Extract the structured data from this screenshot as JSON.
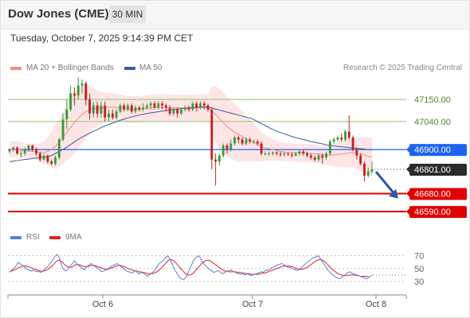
{
  "header": {
    "title": "Dow Jones (CME)",
    "interval": "30 MIN"
  },
  "datetime": "Tuesday, October 7, 2025 9:14:39 PM CET",
  "legend": {
    "ma20": "MA 20 + Bollinger Bands",
    "ma50": "MA 50",
    "rsi": "RSI",
    "ma9": "9MA"
  },
  "attribution": "Research © 2025 Trading Central",
  "colors": {
    "bollinger_fill": "#fde0e0",
    "ma20": "#f08a8a",
    "ma50": "#3a5aa0",
    "up": "#3a9a3a",
    "down": "#c42020",
    "pivot": "#1e63f0",
    "support": "#e00000",
    "resistance": "#90c070",
    "rsi": "#5a7fd0",
    "rsi_ma": "#e02020",
    "arrow": "#2a5aa8"
  },
  "chart_data": [
    {
      "type": "candlestick",
      "title": "Dow Jones (CME)",
      "x_labels": [
        "Oct 6",
        "Oct 7",
        "Oct 8"
      ],
      "ylim": [
        46515,
        47250
      ],
      "price_levels": [
        {
          "label": "47150.00",
          "value": 47150,
          "kind": "resistance"
        },
        {
          "label": "47040.00",
          "value": 47040,
          "kind": "resistance"
        },
        {
          "label": "46900.00",
          "value": 46900,
          "kind": "pivot"
        },
        {
          "label": "46801.00",
          "value": 46801,
          "kind": "last"
        },
        {
          "label": "46680.00",
          "value": 46680,
          "kind": "support"
        },
        {
          "label": "46590.00",
          "value": 46590,
          "kind": "support"
        }
      ],
      "candles": [
        [
          46890,
          46900,
          46880,
          46905
        ],
        [
          46900,
          46910,
          46890,
          46915
        ],
        [
          46910,
          46880,
          46875,
          46915
        ],
        [
          46880,
          46880,
          46860,
          46895
        ],
        [
          46880,
          46900,
          46870,
          46910
        ],
        [
          46900,
          46920,
          46890,
          46925
        ],
        [
          46920,
          46900,
          46890,
          46925
        ],
        [
          46900,
          46880,
          46870,
          46910
        ],
        [
          46880,
          46850,
          46840,
          46890
        ],
        [
          46850,
          46870,
          46845,
          46880
        ],
        [
          46870,
          46840,
          46830,
          46875
        ],
        [
          46840,
          46830,
          46820,
          46850
        ],
        [
          46830,
          46860,
          46820,
          46870
        ],
        [
          46860,
          46950,
          46850,
          46960
        ],
        [
          46950,
          47050,
          46940,
          47080
        ],
        [
          47050,
          47100,
          47000,
          47150
        ],
        [
          47100,
          47180,
          47090,
          47220
        ],
        [
          47180,
          47170,
          47120,
          47210
        ],
        [
          47170,
          47220,
          47150,
          47260
        ],
        [
          47220,
          47230,
          47180,
          47250
        ],
        [
          47230,
          47150,
          47120,
          47240
        ],
        [
          47150,
          47080,
          47050,
          47180
        ],
        [
          47080,
          47120,
          47060,
          47140
        ],
        [
          47120,
          47080,
          47060,
          47140
        ],
        [
          47080,
          47120,
          47060,
          47140
        ],
        [
          47120,
          47060,
          47040,
          47140
        ],
        [
          47060,
          47080,
          47040,
          47100
        ],
        [
          47080,
          47060,
          47050,
          47100
        ],
        [
          47060,
          47090,
          47050,
          47100
        ],
        [
          47090,
          47120,
          47080,
          47130
        ],
        [
          47120,
          47100,
          47090,
          47130
        ],
        [
          47100,
          47120,
          47090,
          47130
        ],
        [
          47120,
          47090,
          47080,
          47130
        ],
        [
          47090,
          47110,
          47080,
          47120
        ],
        [
          47110,
          47100,
          47090,
          47120
        ],
        [
          47100,
          47110,
          47090,
          47130
        ],
        [
          47110,
          47120,
          47100,
          47130
        ],
        [
          47120,
          47130,
          47100,
          47140
        ],
        [
          47130,
          47110,
          47100,
          47140
        ],
        [
          47110,
          47130,
          47100,
          47140
        ],
        [
          47130,
          47120,
          47100,
          47140
        ],
        [
          47120,
          47110,
          47090,
          47130
        ],
        [
          47110,
          47080,
          47070,
          47120
        ],
        [
          47080,
          47100,
          47070,
          47110
        ],
        [
          47100,
          47080,
          47060,
          47110
        ],
        [
          47080,
          47100,
          47070,
          47110
        ],
        [
          47100,
          47110,
          47090,
          47120
        ],
        [
          47110,
          47100,
          47090,
          47120
        ],
        [
          47100,
          47130,
          47090,
          47140
        ],
        [
          47130,
          47110,
          47090,
          47140
        ],
        [
          47110,
          47130,
          47100,
          47140
        ],
        [
          47130,
          47120,
          47100,
          47140
        ],
        [
          47120,
          47100,
          47090,
          47130
        ],
        [
          47100,
          46850,
          46800,
          47110
        ],
        [
          46850,
          46840,
          46720,
          46880
        ],
        [
          46840,
          46870,
          46820,
          46880
        ],
        [
          46870,
          46920,
          46860,
          46930
        ],
        [
          46920,
          46900,
          46880,
          46930
        ],
        [
          46900,
          46930,
          46890,
          46950
        ],
        [
          46930,
          46960,
          46920,
          46970
        ],
        [
          46960,
          46950,
          46930,
          46970
        ],
        [
          46950,
          46930,
          46920,
          46960
        ],
        [
          46930,
          46950,
          46920,
          46960
        ],
        [
          46950,
          46940,
          46930,
          46960
        ],
        [
          46940,
          46940,
          46930,
          46950
        ],
        [
          46940,
          46930,
          46920,
          46950
        ],
        [
          46930,
          46880,
          46870,
          46940
        ],
        [
          46880,
          46880,
          46870,
          46890
        ],
        [
          46880,
          46880,
          46870,
          46890
        ],
        [
          46880,
          46885,
          46870,
          46890
        ],
        [
          46885,
          46880,
          46870,
          46890
        ],
        [
          46880,
          46875,
          46865,
          46890
        ],
        [
          46875,
          46880,
          46865,
          46890
        ],
        [
          46880,
          46875,
          46870,
          46885
        ],
        [
          46875,
          46870,
          46860,
          46885
        ],
        [
          46870,
          46880,
          46865,
          46890
        ],
        [
          46880,
          46890,
          46870,
          46900
        ],
        [
          46890,
          46880,
          46870,
          46900
        ],
        [
          46880,
          46870,
          46860,
          46890
        ],
        [
          46870,
          46860,
          46850,
          46880
        ],
        [
          46860,
          46850,
          46840,
          46870
        ],
        [
          46850,
          46870,
          46840,
          46880
        ],
        [
          46870,
          46860,
          46830,
          46880
        ],
        [
          46860,
          46880,
          46850,
          46890
        ],
        [
          46880,
          46940,
          46870,
          46950
        ],
        [
          46940,
          46950,
          46930,
          46960
        ],
        [
          46950,
          46960,
          46940,
          46970
        ],
        [
          46960,
          46950,
          46940,
          46980
        ],
        [
          46950,
          46990,
          46940,
          47000
        ],
        [
          46990,
          46960,
          46950,
          47070
        ],
        [
          46960,
          46900,
          46890,
          46970
        ],
        [
          46900,
          46870,
          46850,
          46910
        ],
        [
          46870,
          46830,
          46820,
          46880
        ],
        [
          46830,
          46770,
          46740,
          46840
        ],
        [
          46770,
          46790,
          46760,
          46810
        ],
        [
          46790,
          46801,
          46780,
          46840
        ]
      ],
      "ma20": [
        46900,
        46900,
        46902,
        46898,
        46895,
        46893,
        46890,
        46890,
        46885,
        46885,
        46890,
        46900,
        46915,
        46935,
        46960,
        46985,
        47010,
        47035,
        47055,
        47075,
        47090,
        47100,
        47105,
        47105,
        47108,
        47110,
        47112,
        47112,
        47110,
        47108,
        47105,
        47102,
        47100,
        47100,
        47102,
        47104,
        47106,
        47108,
        47110,
        47110,
        47110,
        47110,
        47108,
        47108,
        47108,
        47108,
        47108,
        47108,
        47108,
        47108,
        47110,
        47110,
        47110,
        47095,
        47075,
        47055,
        47035,
        47015,
        47000,
        46985,
        46975,
        46965,
        46955,
        46945,
        46935,
        46925,
        46915,
        46908,
        46905,
        46900,
        46895,
        46890,
        46888,
        46886,
        46885,
        46884,
        46884,
        46883,
        46882,
        46880,
        46878,
        46876,
        46874,
        46872,
        46872,
        46874,
        46876,
        46878,
        46880,
        46884,
        46884,
        46882,
        46878,
        46874,
        46866,
        46862
      ],
      "ma50": [
        46840,
        46842,
        46845,
        46848,
        46850,
        46852,
        46855,
        46858,
        46860,
        46863,
        46865,
        46870,
        46880,
        46890,
        46900,
        46912,
        46925,
        46938,
        46950,
        46962,
        46972,
        46982,
        46992,
        47000,
        47010,
        47018,
        47025,
        47032,
        47040,
        47046,
        47052,
        47058,
        47063,
        47068,
        47072,
        47076,
        47080,
        47083,
        47086,
        47089,
        47092,
        47095,
        47098,
        47100,
        47102,
        47104,
        47106,
        47108,
        47110,
        47111,
        47112,
        47113,
        47112,
        47108,
        47102,
        47097,
        47092,
        47087,
        47082,
        47077,
        47072,
        47067,
        47062,
        47057,
        47050,
        47040,
        47030,
        47020,
        47010,
        47000,
        46992,
        46985,
        46978,
        46972,
        46965,
        46960,
        46955,
        46950,
        46945,
        46940,
        46936,
        46932,
        46928,
        46924,
        46920,
        46918,
        46916,
        46914,
        46912,
        46910,
        46908,
        46906,
        46905,
        46903,
        46900,
        46898
      ],
      "bb_width": [
        40,
        40,
        40,
        38,
        36,
        36,
        38,
        40,
        45,
        55,
        70,
        90,
        110,
        120,
        130,
        140,
        150,
        152,
        150,
        145,
        140,
        120,
        100,
        90,
        80,
        75,
        70,
        70,
        70,
        68,
        66,
        66,
        66,
        66,
        66,
        66,
        66,
        66,
        66,
        66,
        66,
        66,
        66,
        66,
        66,
        66,
        66,
        66,
        66,
        66,
        66,
        66,
        66,
        120,
        140,
        150,
        150,
        148,
        145,
        140,
        135,
        125,
        115,
        105,
        95,
        85,
        75,
        65,
        60,
        55,
        50,
        48,
        45,
        45,
        45,
        45,
        45,
        45,
        45,
        45,
        45,
        45,
        45,
        48,
        52,
        58,
        62,
        66,
        70,
        72,
        74,
        80,
        86,
        90,
        95,
        95
      ]
    },
    {
      "type": "line",
      "series_names": [
        "RSI",
        "9MA"
      ],
      "y_ticks": [
        70,
        50,
        30
      ],
      "ylim": [
        20,
        82
      ],
      "rsi": [
        44,
        47,
        49,
        51,
        55,
        60,
        58,
        56,
        54,
        52,
        50,
        48,
        47,
        46,
        48,
        46,
        45,
        46,
        44,
        45,
        47,
        50,
        52,
        55,
        58,
        62,
        66,
        70,
        72,
        68,
        60,
        52,
        48,
        46,
        48,
        52,
        55,
        58,
        62,
        60,
        56,
        54,
        52,
        50,
        48,
        52,
        54,
        56,
        58,
        55,
        53,
        52,
        50,
        48,
        45,
        46,
        47,
        48,
        50,
        52,
        54,
        55,
        56,
        58,
        56,
        54,
        52,
        50,
        48,
        46,
        45,
        44,
        43,
        45,
        47,
        44,
        42,
        43,
        44,
        42,
        40,
        38,
        40,
        42,
        44,
        46,
        50,
        54,
        58,
        60,
        62,
        65,
        68,
        70,
        66,
        60,
        54,
        48,
        44,
        40,
        36,
        34,
        33,
        34,
        38,
        44,
        50,
        56,
        62,
        66,
        68,
        70,
        67,
        62,
        58,
        55,
        52,
        50,
        48,
        46,
        44,
        45,
        47,
        46,
        44,
        42,
        43,
        45,
        46,
        47,
        48,
        46,
        45,
        44,
        42,
        42,
        41,
        42,
        40,
        41,
        42,
        40,
        39,
        40,
        41,
        42,
        43,
        44,
        45,
        44,
        46,
        48,
        47,
        49,
        51,
        52,
        54,
        55,
        56,
        57,
        58,
        56,
        55,
        53,
        52,
        51,
        50,
        49,
        48,
        47,
        48,
        50,
        52,
        55,
        58,
        60,
        62,
        64,
        66,
        67,
        68,
        70,
        68,
        64,
        60,
        56,
        52,
        48,
        45,
        42,
        40,
        38,
        36,
        35,
        34,
        36,
        38,
        40,
        42,
        44,
        45,
        43,
        42,
        41,
        40,
        39,
        38,
        37,
        36,
        35,
        34,
        36,
        38,
        40
      ],
      "ma9": [
        45,
        46,
        47,
        48,
        49,
        51,
        52,
        53,
        54,
        54,
        54,
        53,
        52,
        51,
        50,
        49,
        48,
        47,
        46,
        46,
        46,
        47,
        48,
        50,
        52,
        54,
        57,
        60,
        62,
        63,
        62,
        60,
        57,
        55,
        53,
        52,
        52,
        53,
        55,
        56,
        56,
        56,
        55,
        54,
        53,
        53,
        53,
        54,
        55,
        55,
        55,
        54,
        53,
        52,
        51,
        50,
        49,
        49,
        49,
        50,
        51,
        52,
        53,
        54,
        55,
        55,
        54,
        53,
        52,
        51,
        50,
        49,
        48,
        47,
        46,
        46,
        45,
        45,
        44,
        44,
        43,
        42,
        42,
        42,
        42,
        43,
        44,
        46,
        48,
        50,
        53,
        56,
        59,
        62,
        64,
        64,
        63,
        61,
        58,
        55,
        52,
        49,
        46,
        43,
        41,
        40,
        40,
        41,
        43,
        46,
        49,
        52,
        55,
        58,
        60,
        62,
        63,
        63,
        62,
        60,
        58,
        56,
        54,
        52,
        50,
        48,
        47,
        46,
        46,
        45,
        45,
        45,
        45,
        45,
        44,
        44,
        44,
        43,
        43,
        42,
        42,
        42,
        41,
        41,
        41,
        41,
        41,
        42,
        42,
        43,
        43,
        44,
        45,
        46,
        47,
        48,
        49,
        50,
        51,
        52,
        53,
        54,
        54,
        54,
        54,
        53,
        53,
        52,
        51,
        50,
        49,
        49,
        49,
        50,
        51,
        52,
        54,
        56,
        58,
        60,
        62,
        63,
        64,
        64,
        63,
        61,
        59,
        56,
        53,
        50,
        48,
        46,
        44,
        42,
        41,
        40,
        39,
        39,
        39,
        39,
        40,
        40,
        40,
        40,
        39,
        39,
        38,
        38,
        38,
        38,
        38,
        38
      ]
    }
  ]
}
